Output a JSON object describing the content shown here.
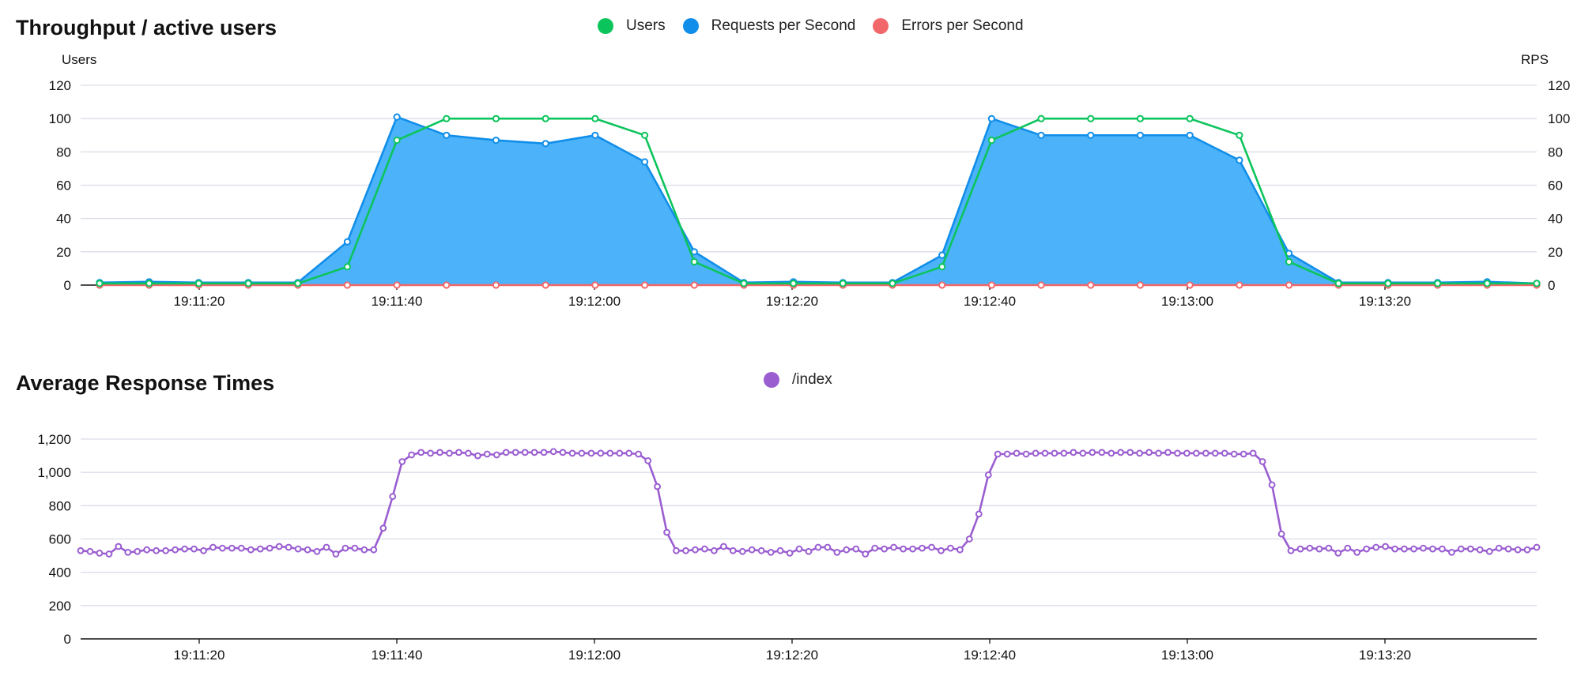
{
  "colors": {
    "users": "#0cc45c",
    "rps": "#118ee9",
    "rps_fill": "#4cb3fa",
    "errors": "#f2676a",
    "response": "#9a5ed1",
    "grid": "#dcdde8",
    "axis": "#111111"
  },
  "chart_data": [
    {
      "type": "area",
      "title": "Throughput / active users",
      "ylabel_left": "Users",
      "ylabel_right": "RPS",
      "ylim": [
        0,
        120
      ],
      "yticks": [
        0,
        20,
        40,
        60,
        80,
        100,
        120
      ],
      "x_tick_labels": [
        "19:11:20",
        "19:11:40",
        "19:12:00",
        "19:12:20",
        "19:12:40",
        "19:13:00",
        "19:13:20"
      ],
      "legend": "top-center",
      "grid": true,
      "series": [
        {
          "name": "Users",
          "color_key": "users",
          "axis": "left",
          "values": [
            1,
            1,
            1,
            1,
            1,
            11,
            87,
            100,
            100,
            100,
            100,
            90,
            14,
            1,
            1,
            1,
            1,
            11,
            87,
            100,
            100,
            100,
            100,
            90,
            14,
            1,
            1,
            1,
            1,
            1
          ]
        },
        {
          "name": "Requests per Second",
          "color_key": "rps",
          "axis": "right",
          "filled": true,
          "values": [
            1.5,
            2,
            1.5,
            1.5,
            1.5,
            26,
            101,
            90,
            87,
            85,
            90,
            74,
            20,
            1.5,
            2,
            1.5,
            1.5,
            18,
            100,
            90,
            90,
            90,
            90,
            75,
            19,
            1.5,
            1.5,
            1.5,
            2,
            1
          ]
        },
        {
          "name": "Errors per Second",
          "color_key": "errors",
          "axis": "right",
          "values": [
            0,
            0,
            0,
            0,
            0,
            0,
            0,
            0,
            0,
            0,
            0,
            0,
            0,
            0,
            0,
            0,
            0,
            0,
            0,
            0,
            0,
            0,
            0,
            0,
            0,
            0,
            0,
            0,
            0,
            0
          ]
        }
      ]
    },
    {
      "type": "line",
      "title": "Average Response Times",
      "ylim": [
        0,
        1200
      ],
      "yticks": [
        0,
        200,
        400,
        600,
        800,
        1000,
        1200
      ],
      "ytick_labels": [
        "0",
        "200",
        "400",
        "600",
        "800",
        "1,000",
        "1,200"
      ],
      "x_tick_labels": [
        "19:11:20",
        "19:11:40",
        "19:12:00",
        "19:12:20",
        "19:12:40",
        "19:13:00",
        "19:13:20"
      ],
      "legend": "top-center",
      "grid": true,
      "series": [
        {
          "name": "/index",
          "color_key": "response",
          "values": [
            530,
            525,
            515,
            510,
            555,
            520,
            525,
            535,
            530,
            530,
            535,
            540,
            540,
            530,
            550,
            545,
            545,
            545,
            535,
            540,
            545,
            555,
            550,
            540,
            535,
            525,
            550,
            510,
            545,
            545,
            535,
            535,
            665,
            855,
            1065,
            1105,
            1120,
            1115,
            1120,
            1115,
            1120,
            1115,
            1100,
            1110,
            1105,
            1120,
            1120,
            1120,
            1120,
            1120,
            1125,
            1120,
            1115,
            1115,
            1115,
            1115,
            1115,
            1115,
            1115,
            1110,
            1070,
            915,
            640,
            530,
            530,
            535,
            540,
            530,
            555,
            530,
            525,
            535,
            530,
            520,
            530,
            515,
            540,
            525,
            550,
            550,
            520,
            535,
            540,
            510,
            545,
            540,
            550,
            540,
            540,
            545,
            550,
            530,
            545,
            535,
            600,
            750,
            985,
            1110,
            1110,
            1115,
            1110,
            1115,
            1115,
            1115,
            1115,
            1120,
            1115,
            1120,
            1120,
            1115,
            1120,
            1120,
            1115,
            1120,
            1115,
            1120,
            1115,
            1115,
            1115,
            1115,
            1115,
            1115,
            1110,
            1110,
            1115,
            1065,
            925,
            630,
            530,
            540,
            545,
            540,
            545,
            515,
            545,
            520,
            540,
            550,
            555,
            540,
            540,
            540,
            545,
            540,
            540,
            520,
            540,
            540,
            535,
            525,
            545,
            540,
            535,
            535,
            550
          ]
        }
      ]
    }
  ]
}
